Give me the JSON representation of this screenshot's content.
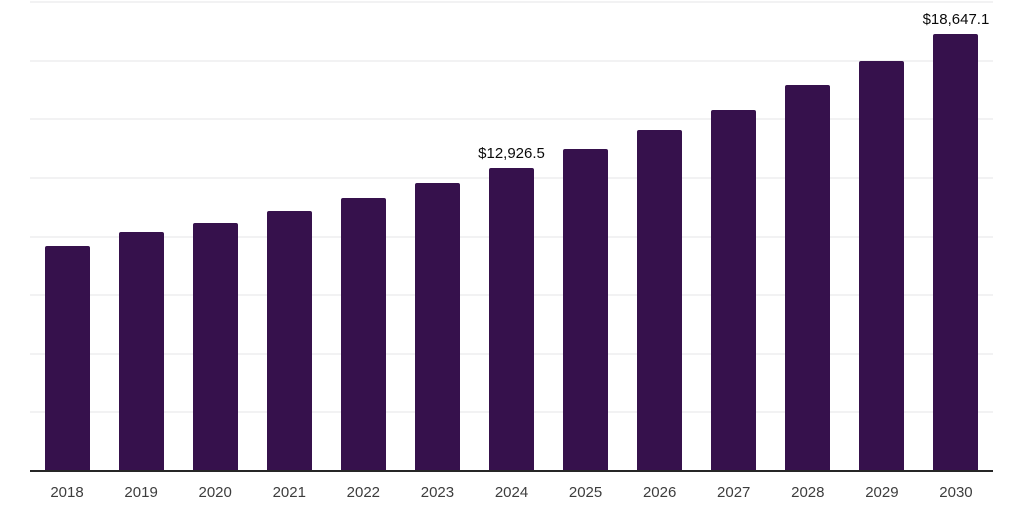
{
  "chart_data": {
    "type": "bar",
    "title": "",
    "xlabel": "",
    "ylabel": "",
    "categories": [
      "2018",
      "2019",
      "2020",
      "2021",
      "2022",
      "2023",
      "2024",
      "2025",
      "2026",
      "2027",
      "2028",
      "2029",
      "2030"
    ],
    "values": [
      9600,
      10210,
      10570,
      11070,
      11640,
      12280,
      12926.5,
      13740,
      14550,
      15400,
      16460,
      17500,
      18647.1
    ],
    "data_labels": [
      "",
      "",
      "",
      "",
      "",
      "",
      "$12,926.5",
      "",
      "",
      "",
      "",
      "",
      "$18,647.1"
    ],
    "ylim": [
      0,
      20000
    ],
    "gridline_step": 2500,
    "grid": "horizontal",
    "legend": "none",
    "y_axis_labels_visible": false
  },
  "colors": {
    "bar": "#36114C",
    "axis_line": "#262626",
    "gridline": "#f2f2f3",
    "year_label": "#3d3d3d",
    "value_label": "#0a0a0a",
    "background": "#ffffff"
  }
}
